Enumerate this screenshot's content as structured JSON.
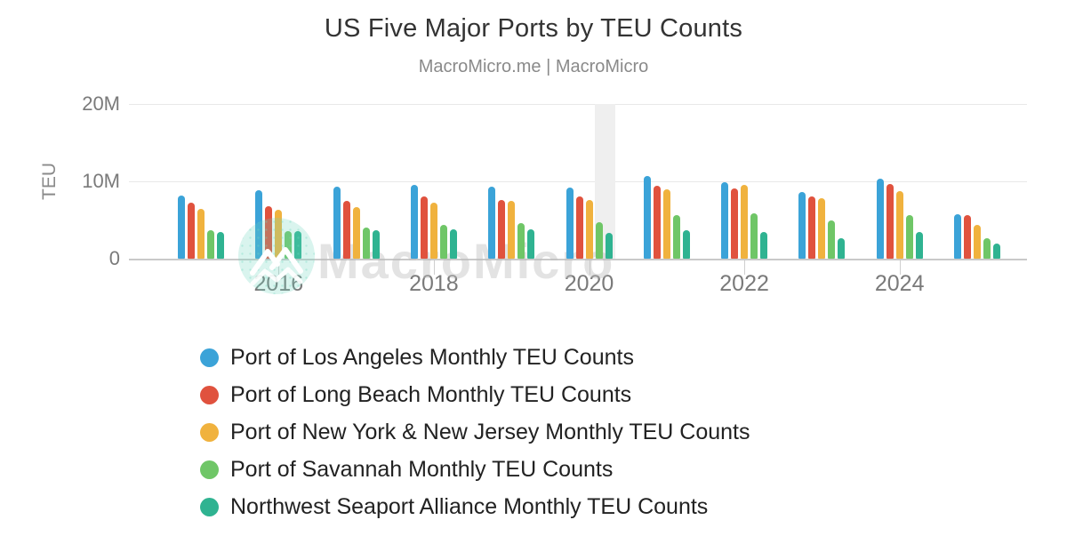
{
  "header": {
    "title": "US Five Major Ports by TEU Counts",
    "subtitle": "MacroMicro.me | MacroMicro"
  },
  "watermark": {
    "text": "MacroMicro",
    "logo": "macromicro-mountain-logo",
    "circle_color": "#6ed6be"
  },
  "chart_data": {
    "type": "bar",
    "title": "US Five Major Ports by TEU Counts",
    "subtitle": "MacroMicro.me | MacroMicro",
    "xlabel": "",
    "ylabel": "TEU",
    "ylim_millions": [
      0,
      20
    ],
    "y_ticks": [
      {
        "value_millions": 0,
        "label": "0"
      },
      {
        "value_millions": 10,
        "label": "10M"
      },
      {
        "value_millions": 20,
        "label": "20M"
      }
    ],
    "categories": [
      "2015",
      "2016",
      "2017",
      "2018",
      "2019",
      "2020",
      "2021",
      "2022",
      "2023",
      "2024",
      "2025"
    ],
    "x_tick_labels": [
      "2016",
      "2018",
      "2020",
      "2022",
      "2024"
    ],
    "grid": "horizontal",
    "legend_position": "bottom-left",
    "highlight_band": {
      "category": "2020",
      "meaning": "recession-band"
    },
    "series": [
      {
        "name": "Port of Los Angeles Monthly TEU Counts",
        "color": "#3BA3D8",
        "values_millions": [
          8.2,
          8.9,
          9.3,
          9.5,
          9.3,
          9.2,
          10.7,
          9.9,
          8.6,
          10.3,
          5.8
        ]
      },
      {
        "name": "Port of Long Beach Monthly TEU Counts",
        "color": "#E0523E",
        "values_millions": [
          7.2,
          6.8,
          7.5,
          8.1,
          7.6,
          8.1,
          9.4,
          9.1,
          8.0,
          9.6,
          5.6
        ]
      },
      {
        "name": "Port of New York & New Jersey Monthly TEU Counts",
        "color": "#F0B23E",
        "values_millions": [
          6.4,
          6.3,
          6.7,
          7.2,
          7.5,
          7.6,
          9.0,
          9.5,
          7.8,
          8.7,
          4.4
        ]
      },
      {
        "name": "Port of Savannah Monthly TEU Counts",
        "color": "#6FC667",
        "values_millions": [
          3.7,
          3.6,
          4.0,
          4.4,
          4.6,
          4.7,
          5.6,
          5.9,
          4.9,
          5.6,
          2.7
        ]
      },
      {
        "name": "Northwest Seaport Alliance Monthly TEU Counts",
        "color": "#2FB391",
        "values_millions": [
          3.5,
          3.6,
          3.7,
          3.8,
          3.8,
          3.3,
          3.7,
          3.4,
          2.7,
          3.4,
          1.9
        ]
      }
    ]
  }
}
